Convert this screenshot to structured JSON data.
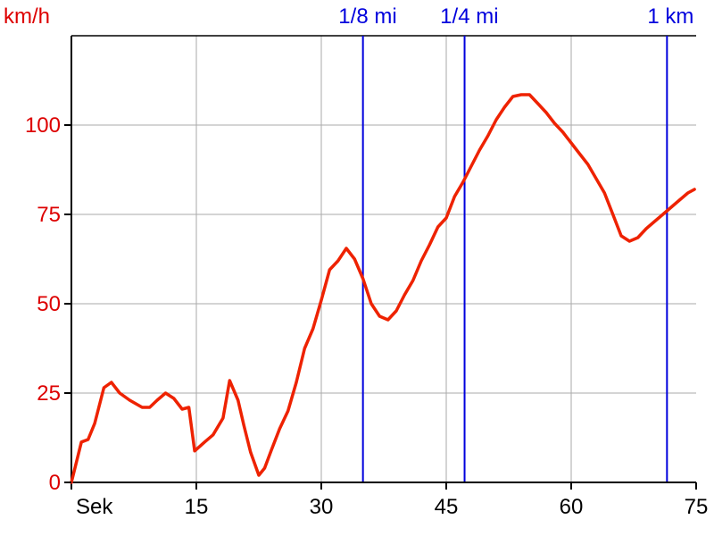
{
  "chart_data": {
    "type": "line",
    "title": "",
    "ylabel": "km/h",
    "xlabel": "Sek",
    "xlim": [
      0,
      75
    ],
    "ylim": [
      0,
      125
    ],
    "x_ticks": [
      15,
      30,
      45,
      60,
      75
    ],
    "y_ticks": [
      0,
      25,
      50,
      75,
      100
    ],
    "x_tick_labels": [
      "15",
      "30",
      "45",
      "60",
      "75"
    ],
    "y_tick_labels": [
      "0",
      "25",
      "50",
      "75",
      "100"
    ],
    "grid": true,
    "colors": {
      "line": "#ee2200",
      "ylabel": "#dd0000",
      "marker": "#0000dd",
      "grid": "#aaaaaa",
      "axis": "#000000"
    },
    "series": [
      {
        "x": [
          0.0,
          1.2,
          2.0,
          2.8,
          3.9,
          4.8,
          5.8,
          7.0,
          8.5,
          9.4,
          10.3,
          11.3,
          12.3,
          13.3,
          14.1,
          14.8,
          16.0,
          17.0,
          18.2,
          19.0,
          20.0,
          20.7,
          21.5,
          22.5,
          23.2,
          24.0,
          25.0,
          26.0,
          27.0,
          28.0,
          29.0,
          30.0,
          31.0,
          32.0,
          33.0,
          34.0,
          35.0,
          36.0,
          37.0,
          38.0,
          39.0,
          40.0,
          41.0,
          42.0,
          43.0,
          44.0,
          45.0,
          46.0,
          47.0,
          48.0,
          49.0,
          50.0,
          51.0,
          52.0,
          53.0,
          54.0,
          55.0,
          56.0,
          57.0,
          58.0,
          59.0,
          60.0,
          61.0,
          62.0,
          63.0,
          64.0,
          65.0,
          66.0,
          67.0,
          68.0,
          69.0,
          70.0,
          71.0,
          72.0,
          73.0,
          74.0,
          74.8
        ],
        "y": [
          0,
          11.3,
          12,
          16.5,
          26.5,
          28,
          25,
          23,
          21,
          21,
          23,
          25,
          23.5,
          20.5,
          21,
          8.8,
          11.3,
          13.3,
          18,
          28.5,
          23,
          16,
          8.5,
          2,
          4,
          9,
          15,
          20,
          28,
          37.5,
          43,
          51,
          59.5,
          62,
          65.5,
          62.5,
          57,
          50,
          46.5,
          45.5,
          48,
          52.5,
          56.5,
          62,
          66.5,
          71.5,
          74,
          80,
          84,
          88.5,
          93,
          97,
          101.5,
          105,
          108,
          108.5,
          108.5,
          106,
          103.5,
          100.5,
          98,
          95,
          92,
          89,
          85,
          81,
          75,
          69,
          67.5,
          68.5,
          71,
          73,
          75,
          77,
          79,
          81,
          82
        ]
      }
    ],
    "markers": [
      {
        "label": "1/8 mi",
        "x": 35.0
      },
      {
        "label": "1/4 mi",
        "x": 47.2
      },
      {
        "label": "1 km",
        "x": 71.5
      }
    ]
  }
}
